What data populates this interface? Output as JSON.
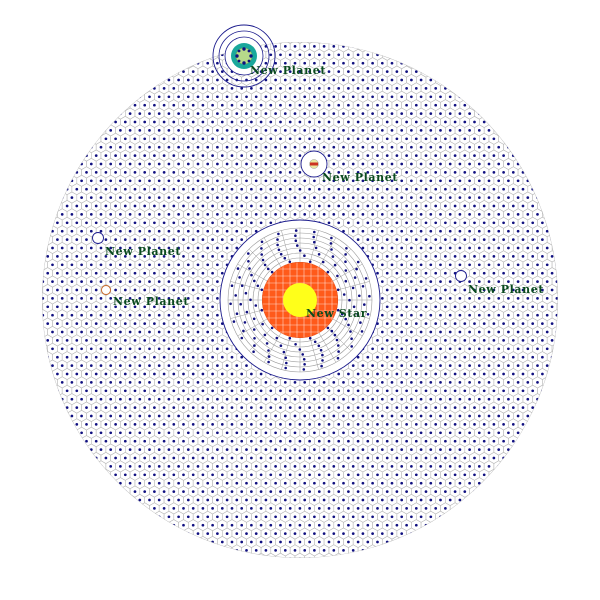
{
  "star": {
    "name": "New Star",
    "colors": {
      "core": "#ffff1a",
      "corona": "#ff5a1a",
      "grid": "#ffffff",
      "orbit": "#1a1a8c"
    }
  },
  "planets": [
    {
      "name": "New Planet",
      "icon": "ringed-planet-icon",
      "color": "#1aa89c"
    },
    {
      "name": "New Planet",
      "icon": "small-planet-icon",
      "color": "#cc3322"
    },
    {
      "name": "New Planet",
      "icon": "planet-marker-icon",
      "color": "#1a1a8c"
    },
    {
      "name": "New Planet",
      "icon": "planet-marker-icon",
      "color": "#cc6622"
    },
    {
      "name": "New Planet",
      "icon": "planet-marker-icon",
      "color": "#1a1a8c"
    }
  ],
  "field": {
    "hex_stroke": "#b8b8b8",
    "dot_color": "#101080"
  }
}
